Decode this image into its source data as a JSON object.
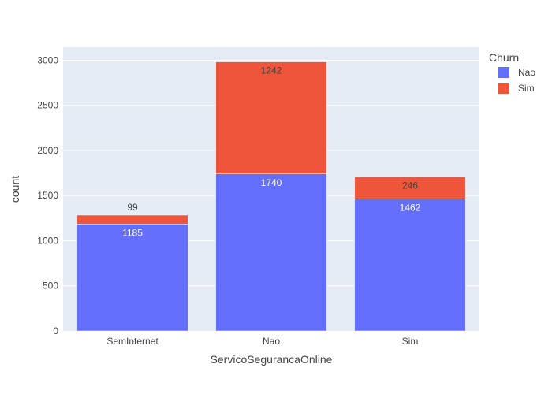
{
  "chart_data": {
    "type": "bar",
    "barmode": "stack",
    "categories": [
      "SemInternet",
      "Nao",
      "Sim"
    ],
    "series": [
      {
        "name": "Nao",
        "values": [
          1185,
          1740,
          1462
        ],
        "color": "#636efa",
        "label_color": "#ffffff"
      },
      {
        "name": "Sim",
        "values": [
          99,
          1242,
          246
        ],
        "color": "#ef553b",
        "label_color": "#444444"
      }
    ],
    "xlabel": "ServicoSegurancaOnline",
    "ylabel": "count",
    "ylim": [
      0,
      3144
    ],
    "yticks": [
      0,
      500,
      1000,
      1500,
      2000,
      2500,
      3000
    ],
    "grid": true,
    "plot_background": "#e5ecf6",
    "legend": {
      "title": "Churn",
      "placement": "top-right"
    }
  }
}
